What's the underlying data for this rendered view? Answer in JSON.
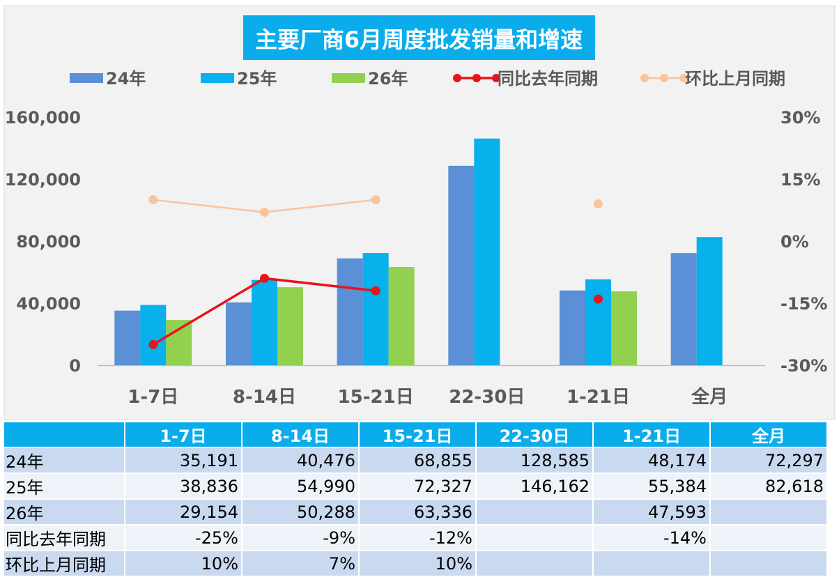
{
  "chart_data": {
    "type": "bar",
    "title": "主要厂商6月周度批发销量和增速",
    "categories": [
      "1-7日",
      "8-14日",
      "15-21日",
      "22-30日",
      "1-21日",
      "全月"
    ],
    "series": [
      {
        "name": "24年",
        "type": "bar",
        "color": "#5b8fd6",
        "values": [
          35191,
          40476,
          68855,
          128585,
          48174,
          72297
        ]
      },
      {
        "name": "25年",
        "type": "bar",
        "color": "#08b0ec",
        "values": [
          38836,
          54990,
          72327,
          146162,
          55384,
          82618
        ]
      },
      {
        "name": "26年",
        "type": "bar",
        "color": "#92d050",
        "values": [
          29154,
          50288,
          63336,
          null,
          47593,
          null
        ]
      },
      {
        "name": "同比去年同期",
        "type": "line",
        "axis": "right",
        "color": "#e8141b",
        "values": [
          -25,
          -9,
          -12,
          null,
          -14,
          null
        ]
      },
      {
        "name": "环比上月同期",
        "type": "line",
        "axis": "right",
        "color": "#f8c49c",
        "values": [
          10,
          7,
          10,
          null,
          9,
          null
        ]
      }
    ],
    "y_left": {
      "ticks": [
        "0",
        "40,000",
        "80,000",
        "120,000",
        "160,000"
      ],
      "lim": [
        0,
        160000
      ]
    },
    "y_right": {
      "ticks": [
        "-30%",
        "-15%",
        "0%",
        "15%",
        "30%"
      ],
      "lim": [
        -30,
        30
      ]
    },
    "grid": false,
    "legend": "top"
  },
  "table": {
    "headers": [
      "1-7日",
      "8-14日",
      "15-21日",
      "22-30日",
      "1-21日",
      "全月"
    ],
    "rows": [
      {
        "label": "24年",
        "cells": [
          "35,191",
          "40,476",
          "68,855",
          "128,585",
          "48,174",
          "72,297"
        ]
      },
      {
        "label": "25年",
        "cells": [
          "38,836",
          "54,990",
          "72,327",
          "146,162",
          "55,384",
          "82,618"
        ]
      },
      {
        "label": "26年",
        "cells": [
          "29,154",
          "50,288",
          "63,336",
          "",
          "47,593",
          ""
        ]
      },
      {
        "label": "同比去年同期",
        "cells": [
          "-25%",
          "-9%",
          "-12%",
          "",
          "-14%",
          ""
        ]
      },
      {
        "label": "环比上月同期",
        "cells": [
          "10%",
          "7%",
          "10%",
          "",
          "",
          ""
        ]
      }
    ]
  }
}
